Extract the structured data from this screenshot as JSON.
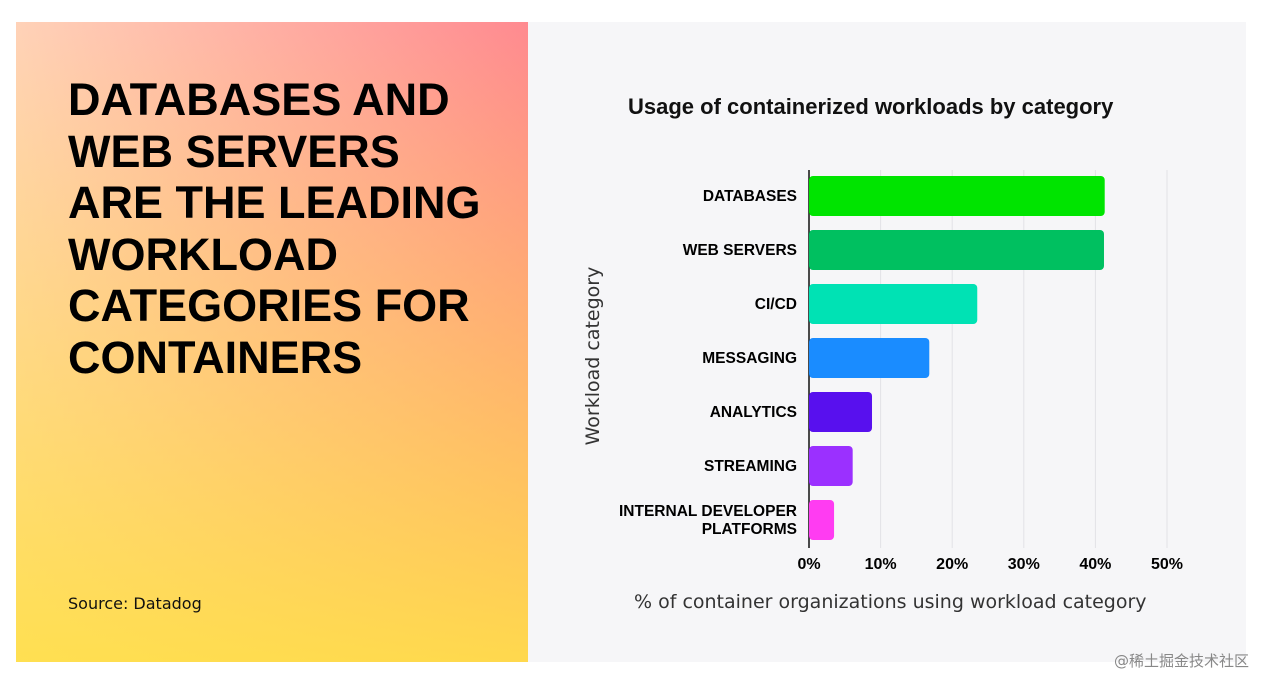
{
  "headline_lines": [
    "DATABASES AND",
    "WEB SERVERS",
    "ARE THE LEADING",
    "WORKLOAD",
    "CATEGORIES FOR",
    "CONTAINERS"
  ],
  "source": "Source: Datadog",
  "watermark": "@稀土掘金技术社区",
  "chart_data": {
    "type": "bar",
    "orientation": "horizontal",
    "title": "Usage of containerized workloads by category",
    "x_label": "% of container organizations using workload category",
    "y_label": "Workload category",
    "categories": [
      "DATABASES",
      "WEB SERVERS",
      "CI/CD",
      "MESSAGING",
      "ANALYTICS",
      "STREAMING",
      "INTERNAL DEVELOPER PLATFORMS"
    ],
    "values": [
      41.3,
      41.2,
      23.5,
      16.8,
      8.8,
      6.1,
      3.5
    ],
    "colors": [
      "#00e400",
      "#00c060",
      "#00e2b4",
      "#1a8cff",
      "#5810ee",
      "#9b30ff",
      "#ff3cf2"
    ],
    "xlim": [
      0,
      50
    ],
    "xticks": [
      {
        "value": 0,
        "label": "0%"
      },
      {
        "value": 10,
        "label": "10%"
      },
      {
        "value": 20,
        "label": "20%"
      },
      {
        "value": 30,
        "label": "30%"
      },
      {
        "value": 40,
        "label": "40%"
      },
      {
        "value": 50,
        "label": "50%"
      }
    ],
    "grid": true
  }
}
